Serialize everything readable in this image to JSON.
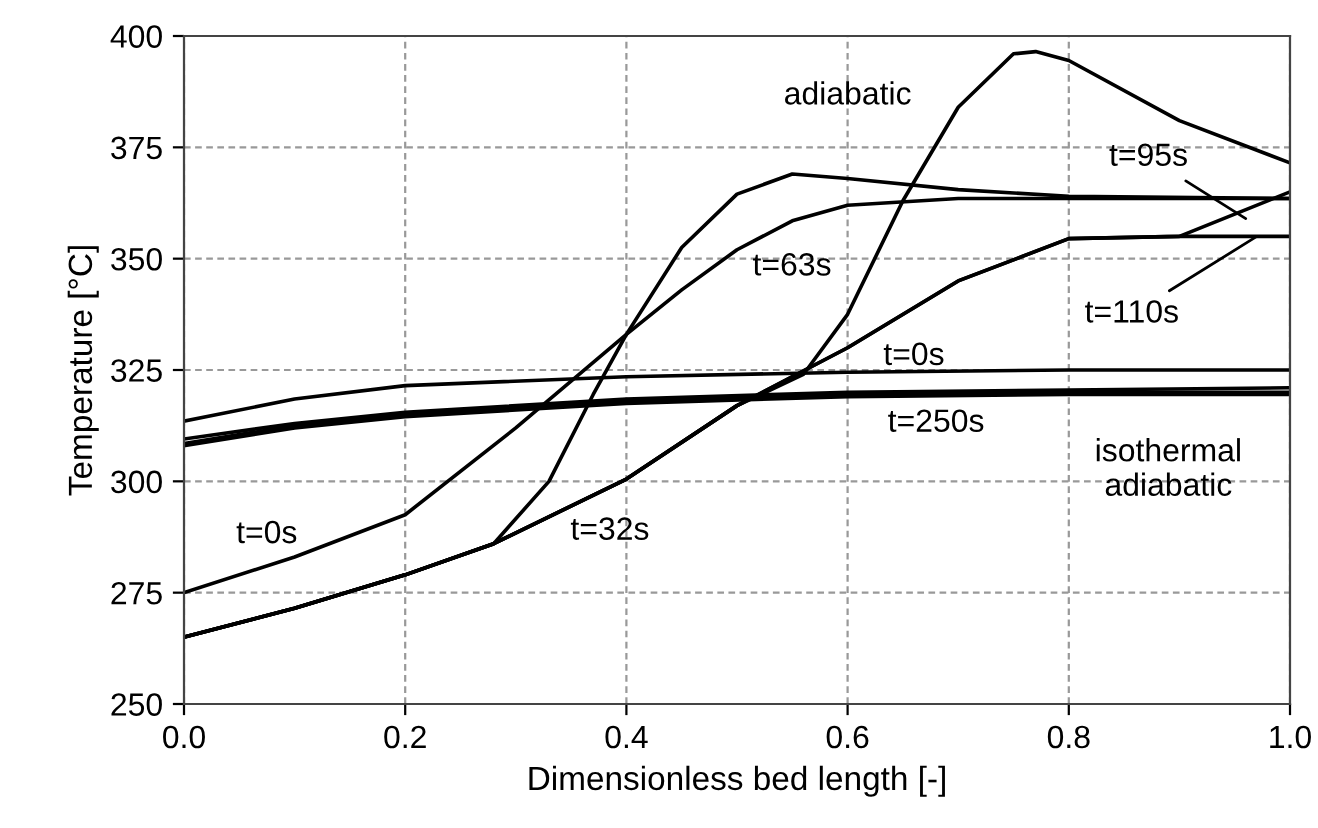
{
  "chart_data": {
    "type": "line",
    "xlabel": "Dimensionless bed length [-]",
    "ylabel": "Temperature [°C]",
    "xlim": [
      0,
      1
    ],
    "ylim": [
      250,
      400
    ],
    "xticks": [
      {
        "value": 0,
        "label": "0.0"
      },
      {
        "value": 0.2,
        "label": "0.2"
      },
      {
        "value": 0.4,
        "label": "0.4"
      },
      {
        "value": 0.6,
        "label": "0.6"
      },
      {
        "value": 0.8,
        "label": "0.8"
      },
      {
        "value": 1,
        "label": "1.0"
      }
    ],
    "yticks": [
      250,
      275,
      300,
      325,
      350,
      375,
      400
    ],
    "grid": true,
    "line_style": "solid",
    "marker": "none",
    "series": [
      {
        "color": "#000000",
        "x": [
          0,
          0.1,
          0.2,
          0.3,
          0.4,
          0.45,
          0.5,
          0.55,
          0.6,
          0.7,
          0.8,
          1.0
        ],
        "values": [
          275,
          283,
          292.5,
          312,
          333,
          343,
          352,
          358.5,
          362,
          363.5,
          363.5,
          363.5
        ]
      },
      {
        "color": "#000000",
        "x": [
          0,
          0.1,
          0.2,
          0.28,
          0.33,
          0.37,
          0.4,
          0.45,
          0.5,
          0.55,
          0.6,
          0.7,
          0.8,
          1.0
        ],
        "values": [
          265,
          271.5,
          279,
          286,
          300,
          319.5,
          333,
          352.5,
          364.5,
          369,
          368,
          365.5,
          364,
          363.5
        ]
      },
      {
        "color": "#000000",
        "x": [
          0,
          0.1,
          0.2,
          0.28,
          0.4,
          0.5,
          0.56,
          0.6,
          0.65,
          0.7,
          0.75,
          0.77,
          0.8,
          0.9,
          1.0
        ],
        "values": [
          265,
          271.5,
          279,
          286,
          300.5,
          317,
          324,
          337.5,
          363,
          384,
          396,
          396.5,
          394.5,
          381,
          371.5
        ]
      },
      {
        "color": "#000000",
        "x": [
          0,
          0.1,
          0.2,
          0.28,
          0.4,
          0.5,
          0.6,
          0.7,
          0.8,
          0.9,
          0.95,
          1.0
        ],
        "values": [
          265,
          271.5,
          279,
          286,
          300.5,
          317,
          330,
          345,
          354.5,
          355,
          360,
          365
        ]
      },
      {
        "color": "#000000",
        "x": [
          0,
          0.1,
          0.2,
          0.28,
          0.4,
          0.5,
          0.6,
          0.7,
          0.8,
          0.9,
          1.0
        ],
        "values": [
          265,
          271.5,
          279,
          286,
          300.5,
          317,
          330,
          345,
          354.5,
          355,
          355
        ]
      },
      {
        "color": "#000000",
        "x": [
          0,
          0.1,
          0.2,
          0.4,
          0.6,
          0.8,
          1.0
        ],
        "values": [
          313.5,
          318.5,
          321.5,
          323.5,
          324.5,
          325,
          325
        ]
      },
      {
        "color": "#000000",
        "x": [
          0,
          0.1,
          0.2,
          0.4,
          0.6,
          0.8,
          1.0
        ],
        "values": [
          309.5,
          313,
          315.5,
          318.5,
          320,
          320.5,
          321
        ]
      },
      {
        "color": "#000000",
        "x": [
          0,
          0.1,
          0.2,
          0.4,
          0.6,
          0.8,
          1.0
        ],
        "values": [
          308.5,
          312.5,
          315,
          318,
          319.5,
          320,
          320
        ]
      },
      {
        "color": "#000000",
        "x": [
          0,
          0.1,
          0.2,
          0.4,
          0.6,
          0.8,
          1.0
        ],
        "values": [
          308,
          312,
          314.5,
          317.5,
          319,
          319.5,
          319.5
        ]
      }
    ],
    "annotations": [
      "adiabatic",
      {
        "text": "t=0s",
        "x": 0.11,
        "y": 283
      },
      {
        "text": "t=32s",
        "x": 0.36,
        "y": 295
      },
      {
        "text": "t=63s",
        "x": 0.6,
        "y": 337.5
      },
      {
        "text": "t=95s",
        "x": 0.96,
        "y": 359
      },
      {
        "text": "t=110s",
        "x": 0.97,
        "y": 355
      },
      "t=0s",
      "t=250s",
      "isothermal\nadiabatic"
    ]
  }
}
